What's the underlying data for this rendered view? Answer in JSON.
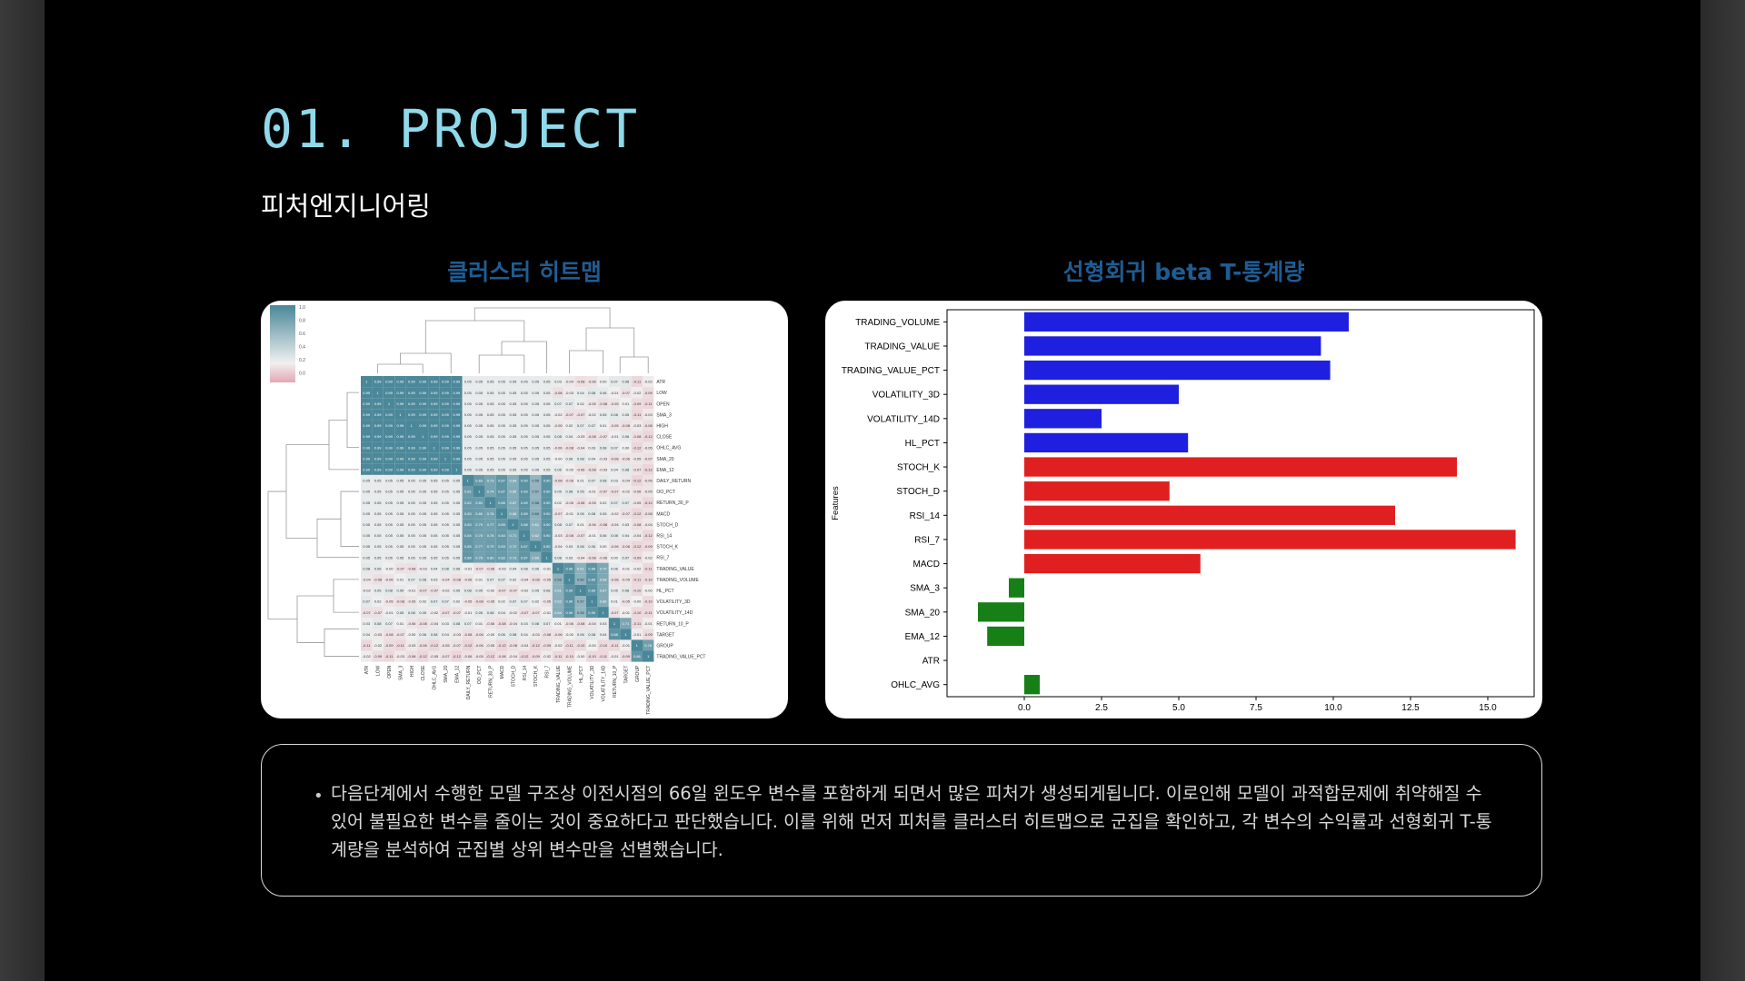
{
  "header": {
    "title": "01. PROJECT",
    "subtitle": "피처엔지니어링"
  },
  "charts": {
    "heatmap_title": "클러스터 히트맵",
    "bar_title": "선형회귀 beta T-통계량"
  },
  "note": {
    "text": "다음단계에서 수행한 모델 구조상 이전시점의 66일 윈도우 변수를 포함하게 되면서 많은 피처가 생성되게됩니다. 이로인해 모델이 과적합문제에 취약해질 수 있어 불필요한 변수를 줄이는 것이 중요하다고 판단했습니다. 이를 위해 먼저 피처를 클러스터 히트맵으로 군집을 확인하고, 각 변수의 수익률과 선형회귀 T-통계량을 분석하여 군집별 상위 변수만을 선별했습니다."
  },
  "chart_data": [
    {
      "type": "heatmap",
      "title": "클러스터 히트맵",
      "labels": [
        "ATR",
        "LOW",
        "OPEN",
        "SMA_3",
        "HIGH",
        "CLOSE",
        "OHLC_AVG",
        "SMA_20",
        "EMA_12",
        "DAILY_RETURN",
        "OO_PCT",
        "RETURN_30_P",
        "MACD",
        "STOCH_D",
        "RSI_14",
        "STOCH_K",
        "RSI_7",
        "TRADING_VALUE",
        "TRADING_VOLUME",
        "HL_PCT",
        "VOLATILITY_3D",
        "VOLATILITY_14D",
        "RETURN_10_P",
        "TARGET",
        "GROUP",
        "TRADING_VALUE_PCT"
      ],
      "colorbar_ticks": [
        "1.0",
        "0.8",
        "0.6",
        "0.4",
        "0.2",
        "0.0"
      ],
      "colors": {
        "high": "#4a8799",
        "mid": "#f0f0f0",
        "low": "#e3a6b4"
      }
    },
    {
      "type": "bar",
      "orientation": "horizontal",
      "title": "선형회귀 beta T-통계량",
      "ylabel": "Features",
      "xlim": [
        -2.5,
        16.5
      ],
      "xticks": [
        0.0,
        2.5,
        5.0,
        7.5,
        10.0,
        12.5,
        15.0
      ],
      "xtick_labels": [
        "0.0",
        "2.5",
        "5.0",
        "7.5",
        "10.0",
        "12.5",
        "15.0"
      ],
      "categories": [
        "TRADING_VOLUME",
        "TRADING_VALUE",
        "TRADING_VALUE_PCT",
        "VOLATILITY_3D",
        "VOLATILITY_14D",
        "HL_PCT",
        "STOCH_K",
        "STOCH_D",
        "RSI_14",
        "RSI_7",
        "MACD",
        "SMA_3",
        "SMA_20",
        "EMA_12",
        "ATR",
        "OHLC_AVG"
      ],
      "values": [
        10.5,
        9.6,
        9.9,
        5.0,
        2.5,
        5.3,
        14.0,
        4.7,
        12.0,
        15.9,
        5.7,
        -0.5,
        -1.5,
        -1.2,
        0.0,
        0.5
      ],
      "bar_colors": [
        "#1f1fe0",
        "#1f1fe0",
        "#1f1fe0",
        "#1f1fe0",
        "#1f1fe0",
        "#1f1fe0",
        "#e02020",
        "#e02020",
        "#e02020",
        "#e02020",
        "#e02020",
        "#168016",
        "#168016",
        "#168016",
        "#168016",
        "#168016"
      ]
    }
  ]
}
